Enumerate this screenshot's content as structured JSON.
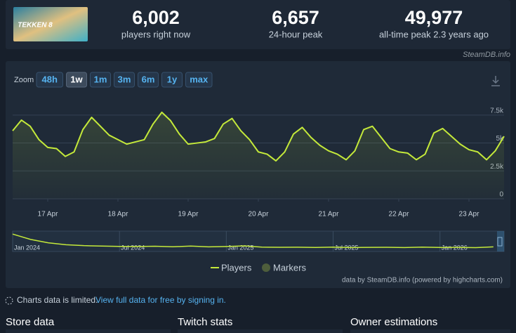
{
  "header": {
    "logo": "TEKKEN 8",
    "stats": [
      {
        "value": "6,002",
        "label": "players right now"
      },
      {
        "value": "6,657",
        "label": "24-hour peak"
      },
      {
        "value": "49,977",
        "label": "all-time peak 2.3 years ago"
      }
    ],
    "credit": "SteamDB.info"
  },
  "zoom": {
    "label": "Zoom",
    "buttons": [
      "48h",
      "1w",
      "1m",
      "3m",
      "6m",
      "1y",
      "max"
    ],
    "active": "1w"
  },
  "chart_data": {
    "type": "line",
    "xlim": [
      -0.5,
      6.5
    ],
    "xticks": [
      {
        "value": 0,
        "label": "17 Apr"
      },
      {
        "value": 1,
        "label": "18 Apr"
      },
      {
        "value": 2,
        "label": "19 Apr"
      },
      {
        "value": 3,
        "label": "20 Apr"
      },
      {
        "value": 4,
        "label": "21 Apr"
      },
      {
        "value": 5,
        "label": "22 Apr"
      },
      {
        "value": 6,
        "label": "23 Apr"
      }
    ],
    "ylim": [
      0,
      9000
    ],
    "yticks": [
      0,
      {
        "value": 2500,
        "label": "2.5k"
      },
      {
        "value": 5000,
        "label": "5k"
      },
      {
        "value": 7500,
        "label": "7.5k"
      }
    ],
    "grid": true,
    "series": [
      {
        "name": "Players",
        "color": "#c4e93a",
        "x": [
          -0.5,
          -0.375,
          -0.25,
          -0.125,
          0,
          0.125,
          0.25,
          0.375,
          0.5,
          0.625,
          0.75,
          0.875,
          1,
          1.125,
          1.25,
          1.375,
          1.5,
          1.625,
          1.75,
          1.875,
          2,
          2.125,
          2.25,
          2.375,
          2.5,
          2.625,
          2.75,
          2.875,
          3,
          3.125,
          3.25,
          3.375,
          3.5,
          3.625,
          3.75,
          3.875,
          4,
          4.125,
          4.25,
          4.375,
          4.5,
          4.625,
          4.75,
          4.875,
          5,
          5.125,
          5.25,
          5.375,
          5.5,
          5.625,
          5.75,
          5.875,
          6,
          6.125,
          6.25,
          6.375,
          6.5
        ],
        "values": [
          6100,
          7050,
          6500,
          5300,
          4600,
          4500,
          3800,
          4200,
          6200,
          7300,
          6500,
          5700,
          5300,
          4900,
          5100,
          5300,
          6700,
          7750,
          7000,
          5800,
          4900,
          5000,
          5100,
          5400,
          6700,
          7200,
          6100,
          5300,
          4200,
          4000,
          3400,
          4200,
          5800,
          6400,
          5500,
          4800,
          4300,
          4000,
          3500,
          4300,
          6200,
          6500,
          5500,
          4500,
          4200,
          4100,
          3500,
          4000,
          5900,
          6300,
          5600,
          4900,
          4400,
          4200,
          3500,
          4300,
          5600
        ]
      }
    ],
    "markers": {
      "name": "Markers",
      "color": "#4e5e3c"
    }
  },
  "navigator": {
    "xlim": [
      0,
      27.6
    ],
    "ylim": [
      0,
      24000
    ],
    "xticks": [
      {
        "value": 0,
        "label": "Jan 2024"
      },
      {
        "value": 6,
        "label": "Jul 2024"
      },
      {
        "value": 12,
        "label": "Jan 2025"
      },
      {
        "value": 18,
        "label": "Jul 2025"
      },
      {
        "value": 24,
        "label": "Jan 2026"
      }
    ],
    "x": [
      0,
      1,
      2,
      3,
      4,
      5,
      6,
      7,
      8,
      9,
      10,
      11,
      12,
      13,
      14,
      15,
      16,
      17,
      18,
      19,
      20,
      21,
      22,
      23,
      24,
      25,
      26,
      27
    ],
    "values": [
      22000,
      15000,
      10500,
      8000,
      6800,
      6200,
      5800,
      5600,
      6000,
      5300,
      6200,
      5200,
      5600,
      6500,
      4800,
      4600,
      4700,
      4400,
      4900,
      4300,
      4500,
      4600,
      4300,
      4900,
      4400,
      4500,
      4200,
      5200
    ]
  },
  "credits": "data by SteamDB.info (powered by highcharts.com)",
  "notice": {
    "text": "Charts data is limited.",
    "link": "View full data for free by signing in."
  },
  "sections": [
    "Store data",
    "Twitch stats",
    "Owner estimations"
  ]
}
